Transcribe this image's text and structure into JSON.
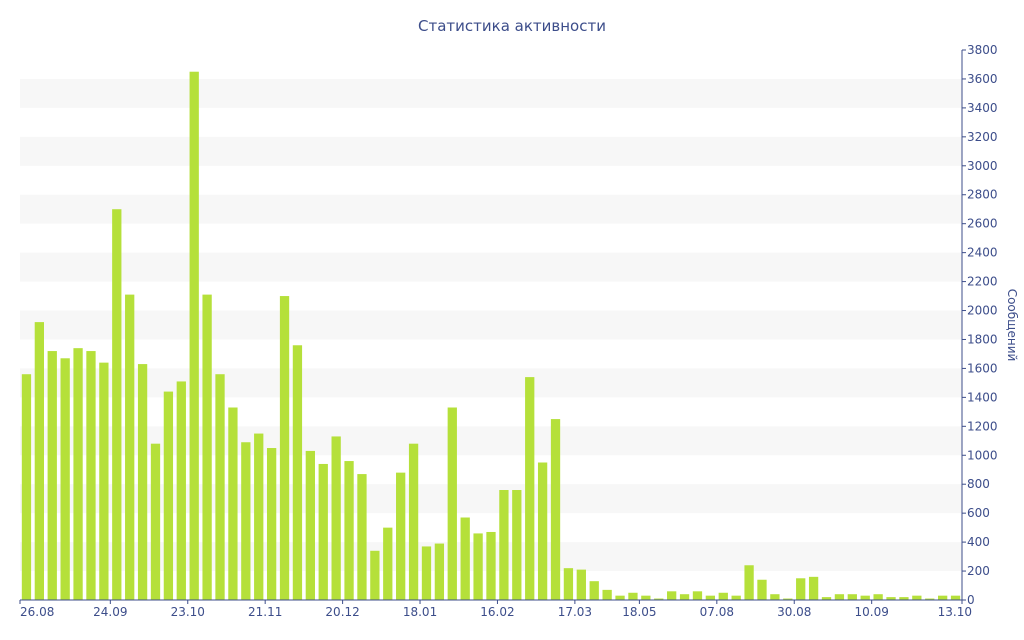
{
  "chart_data": {
    "type": "bar",
    "title": "Статистика активности",
    "ylabel": "Сообщений",
    "xlabel": "",
    "ylim": [
      0,
      3800
    ],
    "y_ticks": [
      0,
      200,
      400,
      600,
      800,
      1000,
      1200,
      1400,
      1600,
      1800,
      2000,
      2200,
      2400,
      2600,
      2800,
      3000,
      3200,
      3400,
      3600,
      3800
    ],
    "x_tick_labels": [
      "26.08",
      "24.09",
      "23.10",
      "21.11",
      "20.12",
      "18.01",
      "16.02",
      "17.03",
      "18.05",
      "07.08",
      "30.08",
      "10.09",
      "13.10"
    ],
    "x_tick_positions": [
      0,
      7,
      13,
      19,
      25,
      31,
      37,
      43,
      48,
      54,
      60,
      66,
      73
    ],
    "grid": "alternating horizontal bands",
    "colors": {
      "bars": "#b5e03a",
      "text": "#3c4d8a",
      "band": "#f7f7f7"
    },
    "values": [
      1560,
      1920,
      1720,
      1670,
      1740,
      1720,
      1640,
      2700,
      2110,
      1630,
      1080,
      1440,
      1510,
      3650,
      2110,
      1560,
      1330,
      1090,
      1150,
      1050,
      2100,
      1760,
      1030,
      940,
      1130,
      960,
      870,
      340,
      500,
      880,
      1080,
      370,
      390,
      1330,
      570,
      460,
      470,
      760,
      760,
      1540,
      950,
      1250,
      220,
      210,
      130,
      70,
      30,
      50,
      30,
      10,
      60,
      40,
      60,
      30,
      50,
      30,
      240,
      140,
      40,
      10,
      150,
      160,
      20,
      40,
      40,
      30,
      40,
      20,
      20,
      30,
      10,
      30,
      30
    ]
  }
}
